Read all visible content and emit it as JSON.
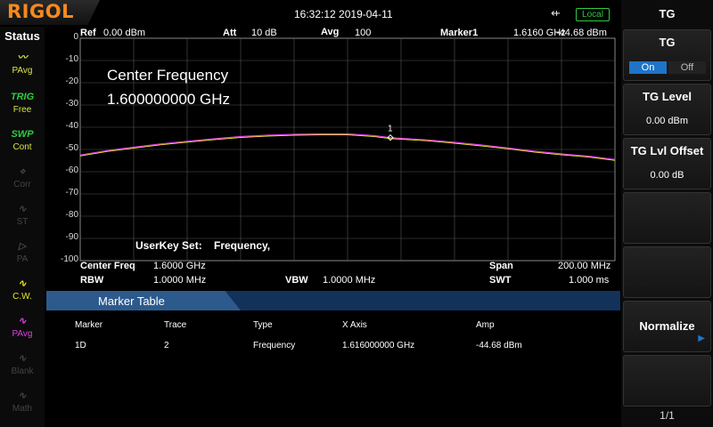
{
  "brand": "RIGOL",
  "datetime": "16:32:12 2019-04-11",
  "usb_icon": "usb-icon",
  "local_label": "Local",
  "status_panel": {
    "title": "Status",
    "items": [
      {
        "icon_text": "RMS PAvg",
        "label": "PAvg",
        "state": "on",
        "color": "#d8e84a"
      },
      {
        "icon_text": "TRIG",
        "label": "Free",
        "state": "on",
        "color": "#2ecc40"
      },
      {
        "icon_text": "SWP",
        "label": "Cont",
        "state": "on",
        "color": "#2ecc40"
      },
      {
        "icon_text": "~◇~",
        "label": "Corr",
        "state": "off"
      },
      {
        "icon_text": "+/\\/\\",
        "label": "ST",
        "state": "off"
      },
      {
        "icon_text": "-▷-",
        "label": "PA",
        "state": "off"
      },
      {
        "icon_text": "/\\/\\",
        "label": "C.W.",
        "state": "on",
        "color": "#e8e820"
      },
      {
        "icon_text": "/\\/\\",
        "label": "PAvg",
        "state": "on",
        "color": "#e040e0"
      },
      {
        "icon_text": "/\\/\\",
        "label": "Blank",
        "state": "off"
      },
      {
        "icon_text": "/\\/\\",
        "label": "Math",
        "state": "off"
      }
    ]
  },
  "plot_header": {
    "ref_label": "Ref",
    "ref_value": "0.00 dBm",
    "att_label": "Att",
    "att_value": "10 dB",
    "avg_label": "Avg",
    "avg_value": "100",
    "marker_label": "Marker1",
    "marker_freq": "1.6160 GHz",
    "marker_amp": "-44.68 dBm"
  },
  "overlay": {
    "center_freq_title": "Center Frequency",
    "center_freq_value": "1.600000000 GHz",
    "userkey_label": "UserKey Set:",
    "userkey_value": "Frequency,"
  },
  "chart_data": {
    "type": "line",
    "x_unit": "GHz",
    "y_unit": "dBm",
    "xlim": [
      1.5,
      1.7
    ],
    "ylim": [
      -100,
      0
    ],
    "y_ticks": [
      "0",
      "-10",
      "-20",
      "-30",
      "-40",
      "-50",
      "-60",
      "-70",
      "-80",
      "-90",
      "-100"
    ],
    "grid": true,
    "series": [
      {
        "color": "#e040e0",
        "x": [
          1.5,
          1.51,
          1.52,
          1.53,
          1.54,
          1.55,
          1.56,
          1.57,
          1.58,
          1.59,
          1.6,
          1.61,
          1.616,
          1.62,
          1.63,
          1.64,
          1.65,
          1.66,
          1.67,
          1.68,
          1.69,
          1.7
        ],
        "y": [
          -52.5,
          -50.5,
          -49.0,
          -47.5,
          -46.3,
          -45.2,
          -44.2,
          -43.6,
          -43.2,
          -43.0,
          -43.0,
          -43.8,
          -44.68,
          -45.0,
          -45.7,
          -46.8,
          -48.0,
          -49.3,
          -50.8,
          -52.0,
          -53.0,
          -54.5
        ]
      }
    ],
    "marker": {
      "label": "1",
      "x": 1.616,
      "y": -44.68
    }
  },
  "bottom_info": {
    "center_label": "Center Freq",
    "center_value": "1.6000 GHz",
    "rbw_label": "RBW",
    "rbw_value": "1.0000 MHz",
    "vbw_label": "VBW",
    "vbw_value": "1.0000 MHz",
    "span_label": "Span",
    "span_value": "200.00 MHz",
    "swt_label": "SWT",
    "swt_value": "1.000 ms"
  },
  "marker_table": {
    "title": "Marker Table",
    "columns": [
      "Marker",
      "Trace",
      "Type",
      "X Axis",
      "Amp"
    ],
    "rows": [
      [
        "1D",
        "2",
        "Frequency",
        "1.616000000 GHz",
        "-44.68 dBm"
      ]
    ]
  },
  "menu": {
    "title": "TG",
    "tg_label": "TG",
    "tg_on": "On",
    "tg_off": "Off",
    "tg_level_label": "TG Level",
    "tg_level_value": "0.00 dBm",
    "tg_offset_label": "TG Lvl Offset",
    "tg_offset_value": "0.00 dB",
    "normalize_label": "Normalize",
    "page": "1/1"
  }
}
